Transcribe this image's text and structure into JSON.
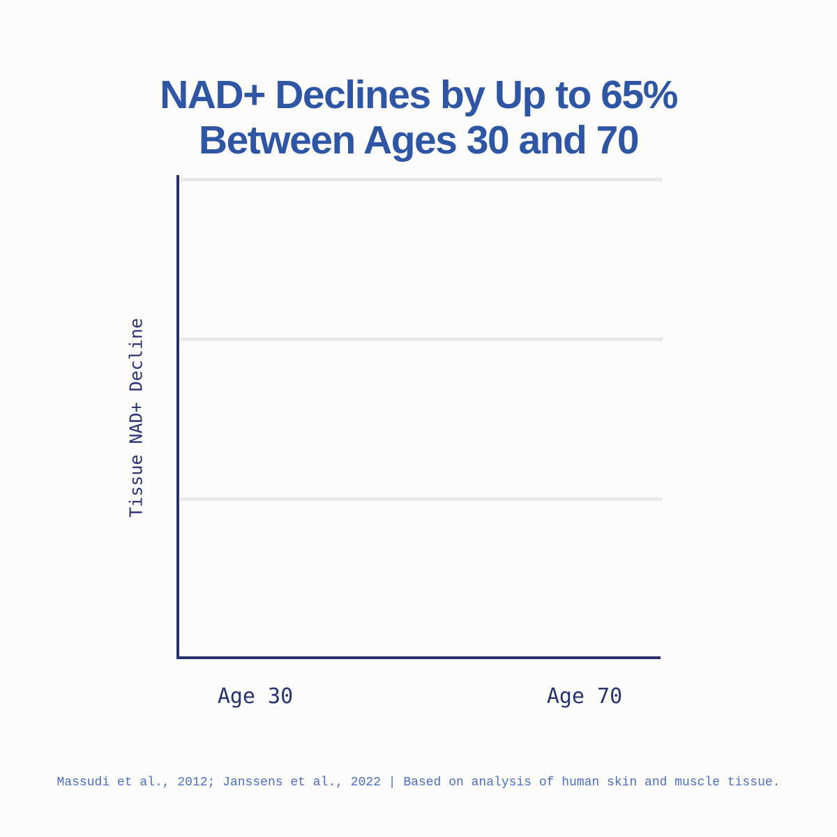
{
  "title": {
    "line1": "NAD+ Declines by Up to 65%",
    "line2": "Between Ages 30 and 70"
  },
  "chart": {
    "ylabel": "Tissue NAD+ Decline",
    "x_ticks": [
      "Age 30",
      "Age 70"
    ]
  },
  "footer": {
    "citation": "Massudi et al., 2012; Janssens et al., 2022 | Based on analysis of human skin and muscle tissue."
  },
  "colors": {
    "title_blue": "#2f55a5",
    "axis_navy": "#293072",
    "tick_navy": "#27336f",
    "ylabel_navy": "#2a3375",
    "footer_blue": "#4d6dc2",
    "gridline_gray": "#e9e9e9",
    "background": "#fcfcfb"
  },
  "chart_data": {
    "type": "line",
    "title": "NAD+ Declines by Up to 65% Between Ages 30 and 70",
    "xlabel": "",
    "ylabel": "Tissue NAD+ Decline",
    "x_tick_labels": [
      "Age 30",
      "Age 70"
    ],
    "y_tick_labels": [],
    "series": [],
    "plot_area_empty": true,
    "gridlines": {
      "horizontal_count": 3,
      "color": "#e9e9e9"
    },
    "legend": false,
    "axis_color": "#293072"
  }
}
